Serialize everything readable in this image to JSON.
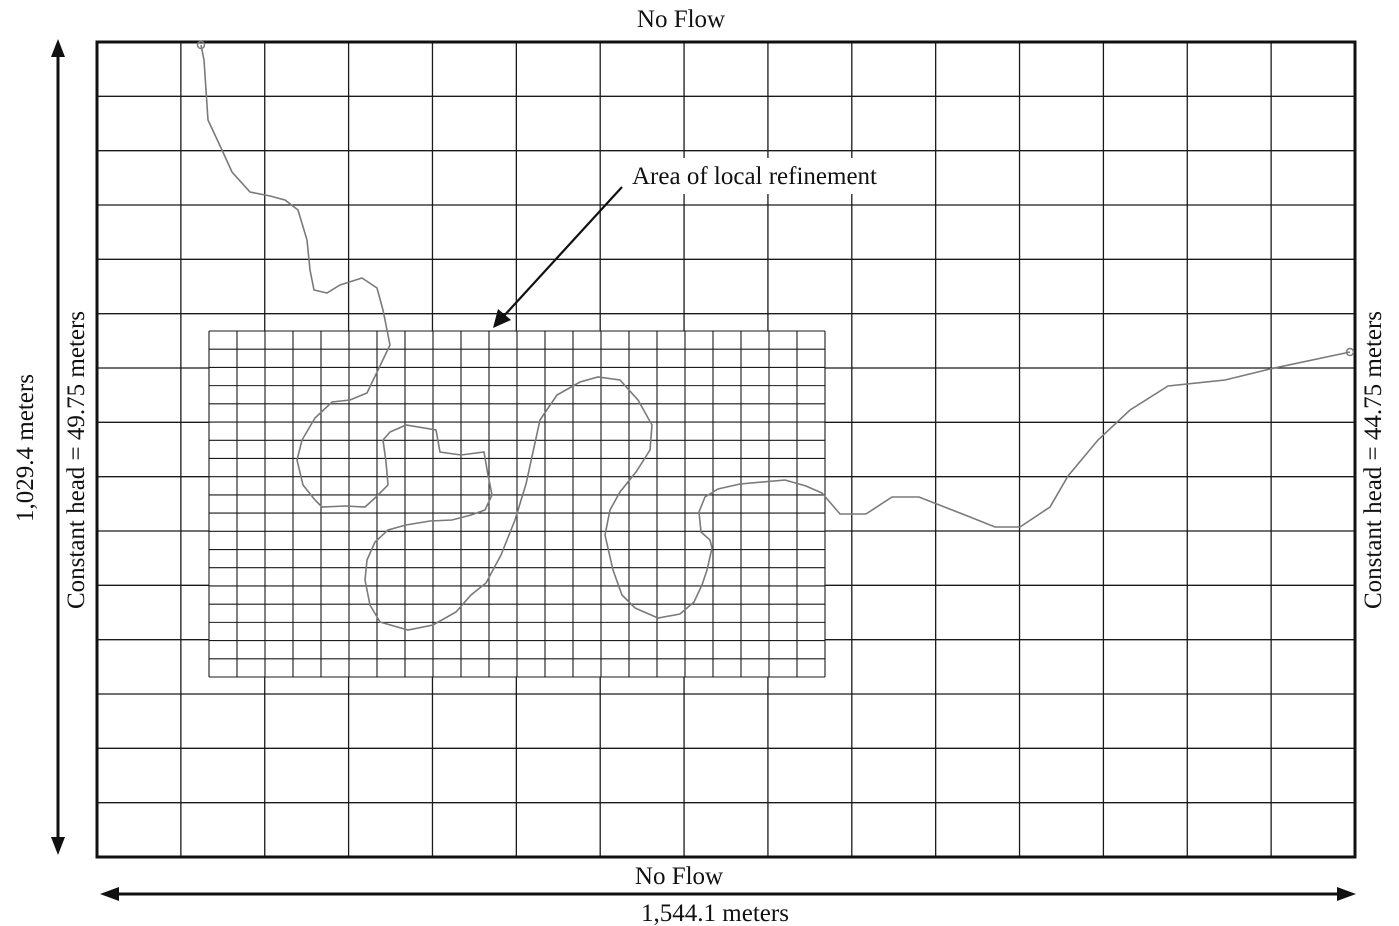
{
  "labels": {
    "top_boundary": "No Flow",
    "bottom_boundary": "No Flow",
    "left_boundary": "Constant head = 49.75 meters",
    "right_boundary": "Constant head = 44.75 meters",
    "height_dimension": "1,029.4 meters",
    "width_dimension": "1,544.1 meters",
    "refinement_callout": "Area of local refinement"
  },
  "colors": {
    "grid": "#1a1a1a",
    "stream": "#7a7a7a",
    "border": "#111111"
  }
}
